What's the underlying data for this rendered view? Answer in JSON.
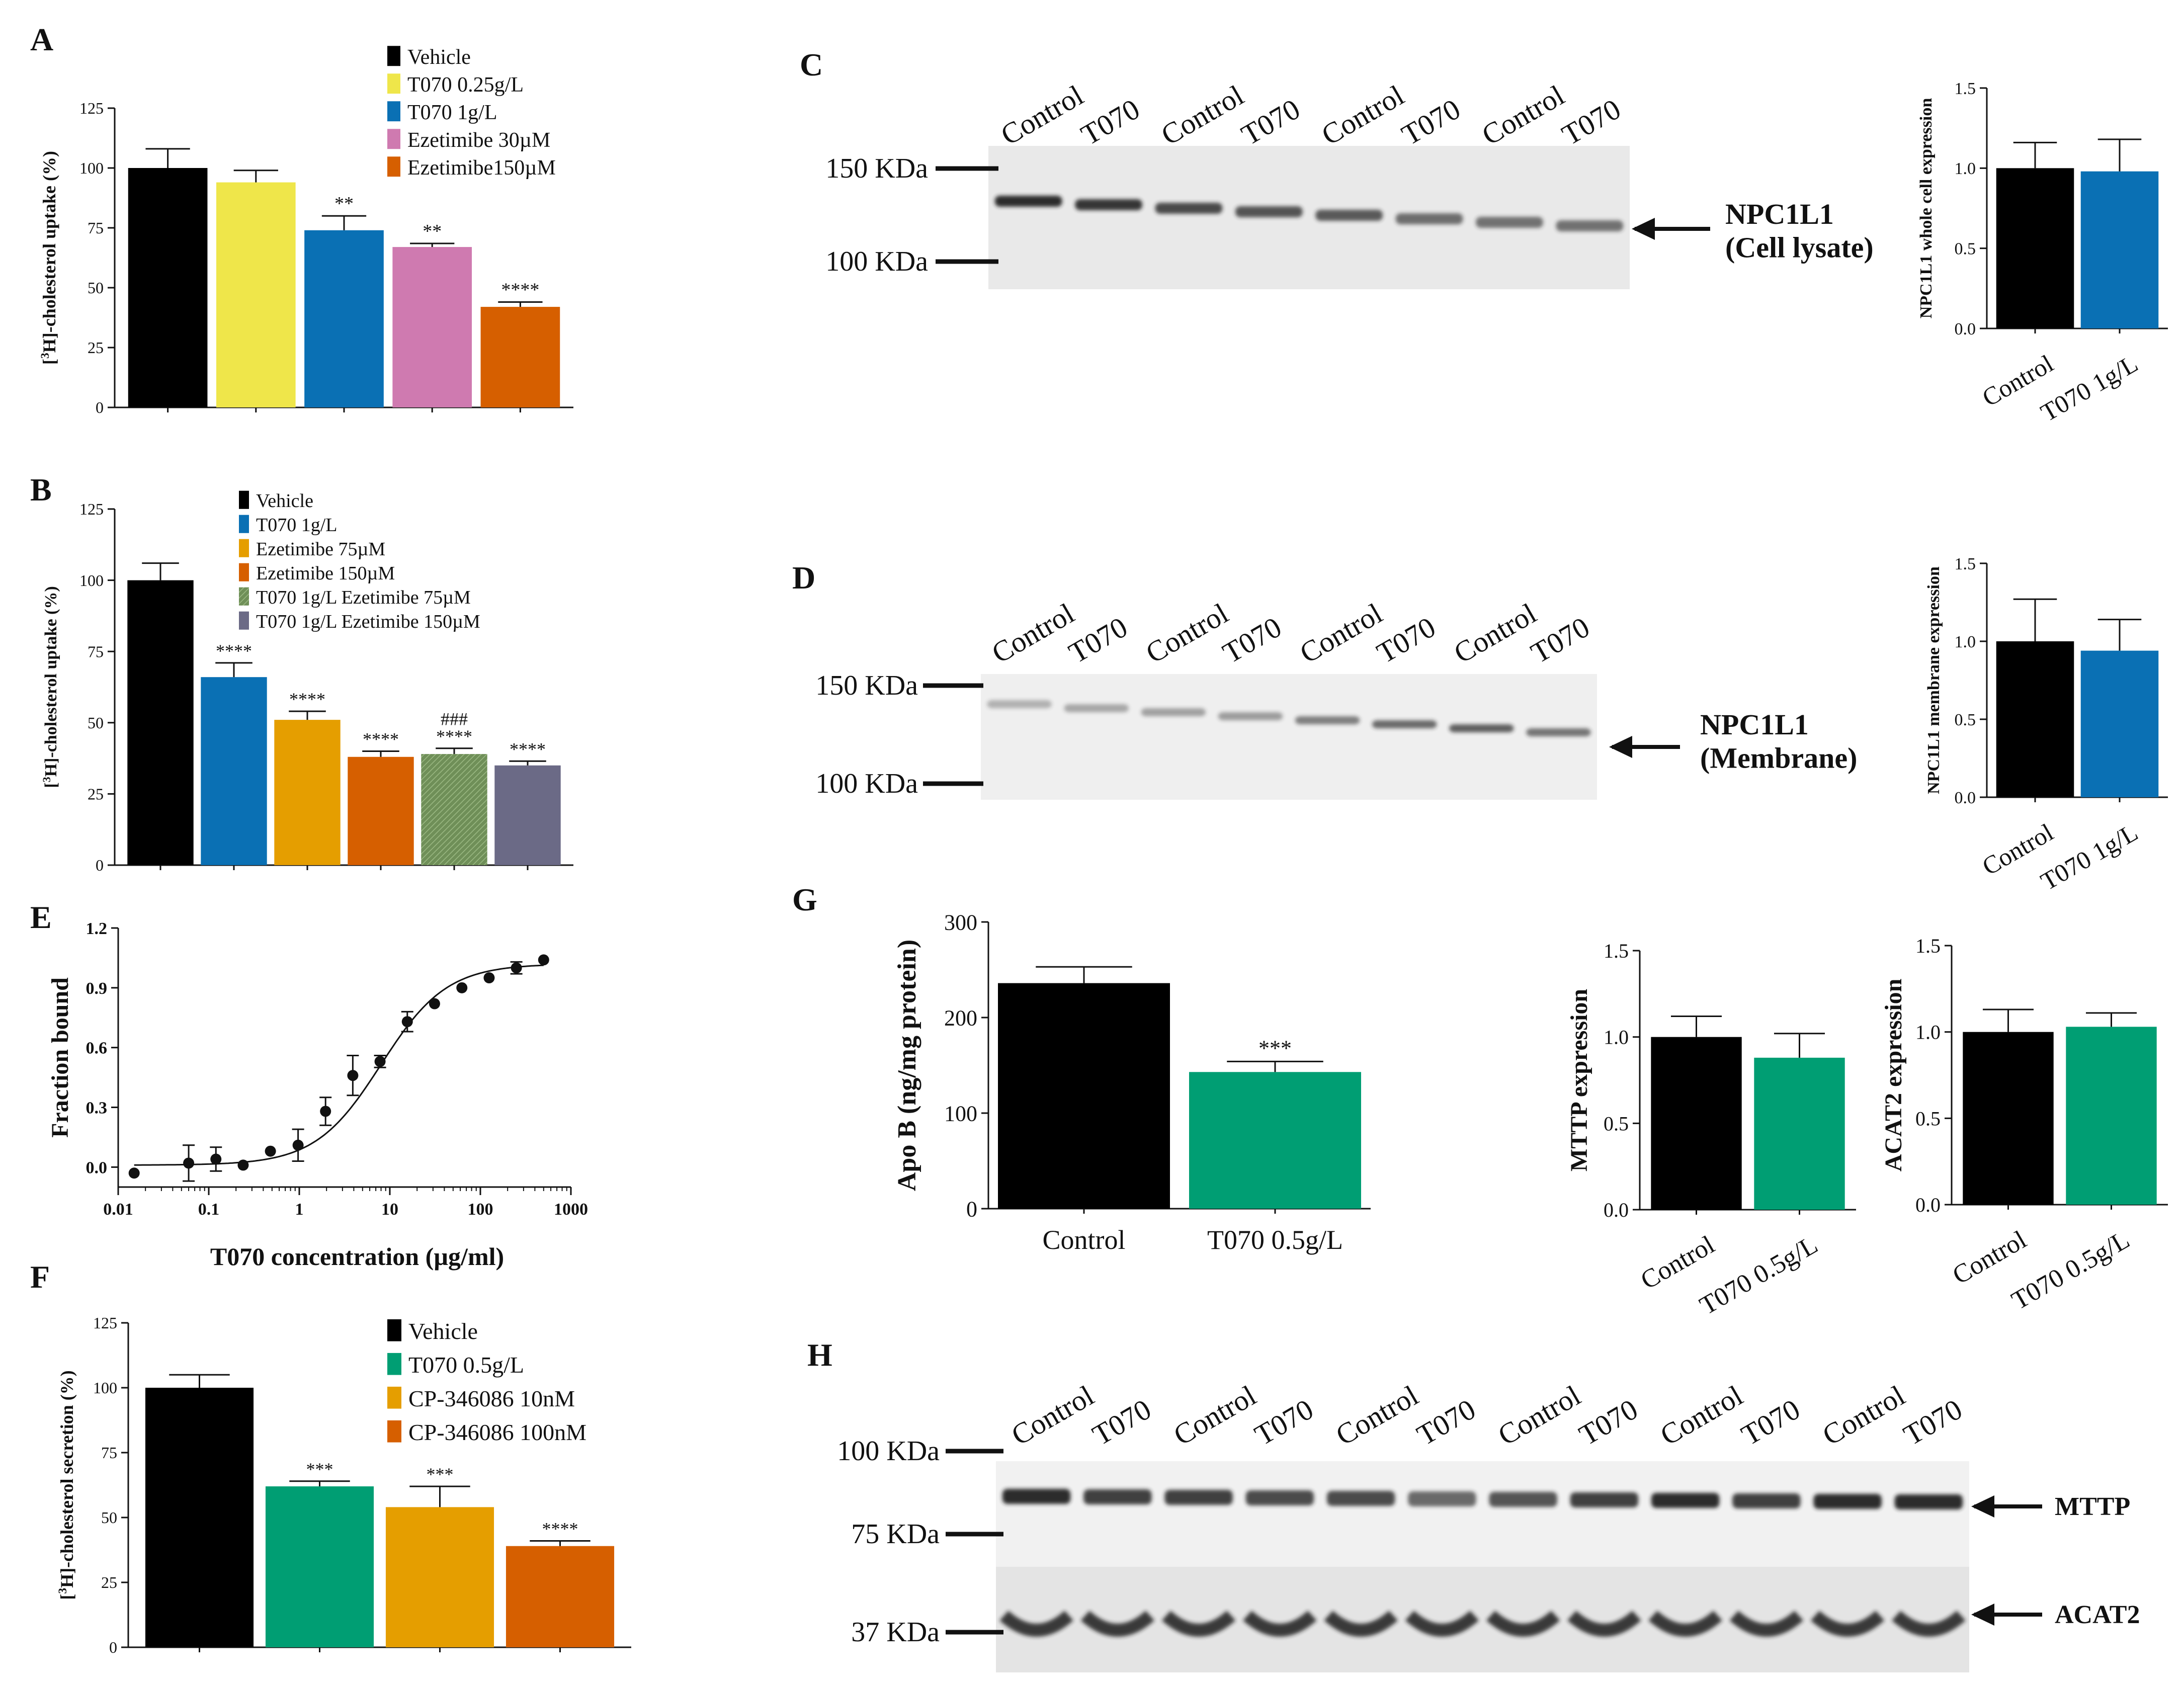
{
  "panel_letters": [
    "A",
    "B",
    "C",
    "D",
    "E",
    "F",
    "G",
    "H"
  ],
  "colors": {
    "black": "#000000",
    "yellow": "#efe64a",
    "blue": "#0a70b4",
    "pink": "#cf7ab0",
    "orange": "#d65f00",
    "amber": "#e59e00",
    "olive": "#6f8f58",
    "slate": "#6b6a86",
    "green": "#009e73"
  },
  "chart_data": [
    {
      "id": "A",
      "type": "bar",
      "ylabel": "[3H]-cholesterol uptake (%)",
      "ylim": [
        0,
        125
      ],
      "yticks": [
        0,
        25,
        50,
        75,
        100,
        125
      ],
      "categories": [
        "Vehicle",
        "T070 0.25g/L",
        "T070 1g/L",
        "Ezetimibe 30µM",
        "Ezetimibe150µM"
      ],
      "values": [
        100,
        94,
        74,
        67,
        42
      ],
      "errors": [
        8,
        5,
        6,
        1.5,
        2
      ],
      "annotations": [
        "",
        "",
        "**",
        "**",
        "****"
      ],
      "colors": [
        "#000000",
        "#efe64a",
        "#0a70b4",
        "#cf7ab0",
        "#d65f00"
      ],
      "legend": [
        "Vehicle",
        "T070 0.25g/L",
        "T070 1g/L",
        "Ezetimibe 30µM",
        "Ezetimibe150µM"
      ]
    },
    {
      "id": "B",
      "type": "bar",
      "ylabel": "[3H]-cholesterol uptake (%)",
      "ylim": [
        0,
        125
      ],
      "yticks": [
        0,
        25,
        50,
        75,
        100,
        125
      ],
      "categories": [
        "Vehicle",
        "T070 1g/L",
        "Ezetimibe 75µM",
        "Ezetimibe 150µM",
        "T070 1g/L Ezetimibe 75µM",
        "T070 1g/L Ezetimibe 150µM"
      ],
      "values": [
        100,
        66,
        51,
        38,
        39,
        35
      ],
      "errors": [
        6,
        5,
        3,
        2,
        2,
        1.5
      ],
      "annotations": [
        "",
        "****",
        "****",
        "****",
        "###\n****",
        "****"
      ],
      "colors": [
        "#000000",
        "#0a70b4",
        "#e59e00",
        "#d65f00",
        "#6f8f58",
        "#6b6a86"
      ],
      "legend": [
        "Vehicle",
        "T070 1g/L",
        "Ezetimibe 75µM",
        "Ezetimibe 150µM",
        "T070 1g/L Ezetimibe 75µM",
        "T070 1g/L Ezetimibe 150µM"
      ]
    },
    {
      "id": "E",
      "type": "scatter",
      "xlabel": "T070 concentration (µg/ml)",
      "ylabel": "Fraction bound",
      "xscale": "log",
      "xlim": [
        0.01,
        1000
      ],
      "xticks": [
        0.01,
        0.1,
        1,
        10,
        100,
        1000
      ],
      "xticklabels": [
        "0.01",
        "0.1",
        "1",
        "10",
        "100",
        "1000"
      ],
      "ylim": [
        -0.1,
        1.2
      ],
      "yticks": [
        0.0,
        0.3,
        0.6,
        0.9,
        1.2
      ],
      "yticklabels": [
        "0.0",
        "0.3",
        "0.6",
        "0.9",
        "1.2"
      ],
      "x": [
        0.015,
        0.06,
        0.12,
        0.24,
        0.48,
        0.97,
        1.95,
        3.9,
        7.8,
        15.6,
        31.2,
        62.5,
        125,
        250,
        500
      ],
      "y": [
        -0.03,
        0.02,
        0.04,
        0.01,
        0.08,
        0.11,
        0.28,
        0.46,
        0.53,
        0.73,
        0.82,
        0.9,
        0.95,
        1.0,
        1.04
      ],
      "errors": [
        0,
        0.09,
        0.06,
        0,
        0,
        0.08,
        0.07,
        0.1,
        0.03,
        0.05,
        0,
        0,
        0,
        0.03,
        0
      ],
      "fit": {
        "bottom": 0.01,
        "top": 1.02,
        "ec50": 8,
        "hill": 1.2
      }
    },
    {
      "id": "F",
      "type": "bar",
      "ylabel": "[3H]-cholesterol secretion (%)",
      "ylim": [
        0,
        125
      ],
      "yticks": [
        0,
        25,
        50,
        75,
        100,
        125
      ],
      "categories": [
        "Vehicle",
        "T070 0.5g/L",
        "CP-346086 10nM",
        "CP-346086 100nM"
      ],
      "values": [
        100,
        62,
        54,
        39
      ],
      "errors": [
        5,
        2,
        8,
        2
      ],
      "annotations": [
        "",
        "***",
        "***",
        "****"
      ],
      "colors": [
        "#000000",
        "#009e73",
        "#e59e00",
        "#d65f00"
      ],
      "legend": [
        "Vehicle",
        "T070 0.5g/L",
        "CP-346086 10nM",
        "CP-346086  100nM"
      ]
    },
    {
      "id": "C-quant",
      "type": "bar",
      "ylabel": "NPC1L1 whole cell expression",
      "ylim": [
        0,
        1.5
      ],
      "yticks": [
        0.0,
        0.5,
        1.0,
        1.5
      ],
      "yticklabels": [
        "0.0",
        "0.5",
        "1.0",
        "1.5"
      ],
      "categories": [
        "Control",
        "T070 1g/L"
      ],
      "values": [
        1.0,
        0.98
      ],
      "errors": [
        0.16,
        0.2
      ],
      "colors": [
        "#000000",
        "#0a70b4"
      ]
    },
    {
      "id": "D-quant",
      "type": "bar",
      "ylabel": "NPC1L1 membrane expression",
      "ylim": [
        0,
        1.5
      ],
      "yticks": [
        0.0,
        0.5,
        1.0,
        1.5
      ],
      "yticklabels": [
        "0.0",
        "0.5",
        "1.0",
        "1.5"
      ],
      "categories": [
        "Control",
        "T070 1g/L"
      ],
      "values": [
        1.0,
        0.94
      ],
      "errors": [
        0.27,
        0.2
      ],
      "colors": [
        "#000000",
        "#0a70b4"
      ]
    },
    {
      "id": "G-apob",
      "type": "bar",
      "ylabel": "Apo B (ng/mg protein)",
      "ylim": [
        0,
        300
      ],
      "yticks": [
        0,
        100,
        200,
        300
      ],
      "yticklabels": [
        "0",
        "100",
        "200",
        "300"
      ],
      "categories": [
        "Control",
        "T070 0.5g/L"
      ],
      "values": [
        236,
        143
      ],
      "errors": [
        17,
        11
      ],
      "annotations": [
        "",
        "***"
      ],
      "colors": [
        "#000000",
        "#009e73"
      ]
    },
    {
      "id": "G-mttp",
      "type": "bar",
      "ylabel": "MTTP expression",
      "ylim": [
        0,
        1.5
      ],
      "yticks": [
        0.0,
        0.5,
        1.0,
        1.5
      ],
      "yticklabels": [
        "0.0",
        "0.5",
        "1.0",
        "1.5"
      ],
      "categories": [
        "Control",
        "T070 0.5g/L"
      ],
      "values": [
        1.0,
        0.88
      ],
      "errors": [
        0.12,
        0.14
      ],
      "colors": [
        "#000000",
        "#009e73"
      ]
    },
    {
      "id": "G-acat2",
      "type": "bar",
      "ylabel": "ACAT2 expression",
      "ylim": [
        0,
        1.5
      ],
      "yticks": [
        0.0,
        0.5,
        1.0,
        1.5
      ],
      "yticklabels": [
        "0.0",
        "0.5",
        "1.0",
        "1.5"
      ],
      "categories": [
        "Control",
        "T070 0.5g/L"
      ],
      "values": [
        1.0,
        1.03
      ],
      "errors": [
        0.13,
        0.08
      ],
      "colors": [
        "#000000",
        "#009e73"
      ]
    }
  ],
  "blots": {
    "C": {
      "lane_labels": [
        "Control",
        "T070",
        "Control",
        "T070",
        "Control",
        "T070",
        "Control",
        "T070"
      ],
      "markers": [
        "150 KDa",
        "100 KDa"
      ],
      "target": "NPC1L1",
      "target_sub": "(Cell lysate)",
      "band_intensity": [
        0.95,
        0.9,
        0.8,
        0.75,
        0.72,
        0.62,
        0.6,
        0.6
      ]
    },
    "D": {
      "lane_labels": [
        "Control",
        "T070",
        "Control",
        "T070",
        "Control",
        "T070",
        "Control",
        "T070"
      ],
      "markers": [
        "150 KDa",
        "100 KDa"
      ],
      "target": "NPC1L1",
      "target_sub": "(Membrane)",
      "band_intensity": [
        0.3,
        0.35,
        0.38,
        0.4,
        0.55,
        0.65,
        0.7,
        0.6
      ]
    },
    "H": {
      "lane_labels": [
        "Control",
        "T070",
        "Control",
        "T070",
        "Control",
        "T070",
        "Control",
        "T070",
        "Control",
        "T070",
        "Control",
        "T070"
      ],
      "markers": [
        "100 KDa",
        "75 KDa",
        "37 KDa"
      ],
      "targets": [
        "MTTP",
        "ACAT2"
      ],
      "band_intensity": [
        0.95,
        0.85,
        0.85,
        0.8,
        0.8,
        0.65,
        0.75,
        0.85,
        0.95,
        0.85,
        0.95,
        0.95
      ]
    }
  }
}
